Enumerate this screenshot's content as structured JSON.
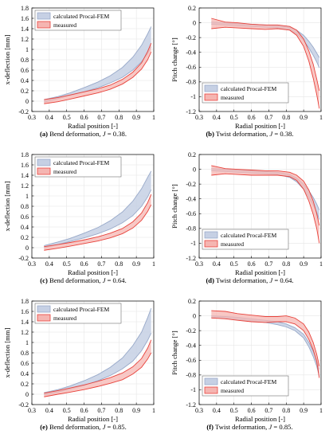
{
  "figure": {
    "panels": [
      {
        "caption": {
          "label": "(a)",
          "text": "Bend deformation,",
          "param": "J",
          "value": "= 0.38."
        }
      },
      {
        "caption": {
          "label": "(b)",
          "text": "Twist deformation,",
          "param": "J",
          "value": "= 0.38."
        }
      },
      {
        "caption": {
          "label": "(c)",
          "text": "Bend deformation,",
          "param": "J",
          "value": "= 0.64."
        }
      },
      {
        "caption": {
          "label": "(d)",
          "text": "Twist deformation,",
          "param": "J",
          "value": "= 0.64."
        }
      },
      {
        "caption": {
          "label": "(e)",
          "text": "Bend deformation,",
          "param": "J",
          "value": "= 0.85."
        }
      },
      {
        "caption": {
          "label": "(f)",
          "text": "Twist deformation,",
          "param": "J",
          "value": "= 0.85."
        }
      }
    ]
  },
  "colors": {
    "calculated_fill": "#c6d0e4",
    "calculated_line": "#98a9c9",
    "measured_fill": "#f5b5b1",
    "measured_line": "#e8423b",
    "grid": "#e6e6e6",
    "axis": "#000000"
  },
  "chart_data": [
    {
      "type": "area",
      "xlabel": "Radial position [-]",
      "ylabel": "x-deflection [mm]",
      "xlim": [
        0.3,
        1.0
      ],
      "ylim": [
        -0.2,
        1.8
      ],
      "grid": true,
      "legend": "top-left",
      "xticks": [
        "0.3",
        "0.4",
        "0.5",
        "0.6",
        "0.7",
        "0.8",
        "0.9",
        "1"
      ],
      "yticks": [
        "-0.2",
        "0",
        "0.2",
        "0.4",
        "0.6",
        "0.8",
        "1",
        "1.2",
        "1.4",
        "1.6",
        "1.8"
      ],
      "x": [
        0.37,
        0.45,
        0.52,
        0.6,
        0.68,
        0.75,
        0.82,
        0.88,
        0.93,
        0.965,
        0.985
      ],
      "series": [
        {
          "name": "calculated Procal-FEM",
          "lower": [
            -0.02,
            0.05,
            0.11,
            0.18,
            0.26,
            0.35,
            0.46,
            0.6,
            0.76,
            0.92,
            1.05
          ],
          "upper": [
            0.03,
            0.09,
            0.16,
            0.26,
            0.37,
            0.49,
            0.65,
            0.85,
            1.08,
            1.3,
            1.44
          ]
        },
        {
          "name": "measured",
          "lower": [
            -0.05,
            -0.01,
            0.04,
            0.1,
            0.16,
            0.23,
            0.33,
            0.46,
            0.62,
            0.8,
            0.95
          ],
          "upper": [
            0.03,
            0.07,
            0.12,
            0.18,
            0.24,
            0.31,
            0.42,
            0.56,
            0.74,
            0.96,
            1.12
          ]
        }
      ]
    },
    {
      "type": "area",
      "xlabel": "Radial position [-]",
      "ylabel": "Pitch change [°]",
      "xlim": [
        0.3,
        1.0
      ],
      "ylim": [
        -1.2,
        0.2
      ],
      "grid": true,
      "legend": "bottom-left",
      "xticks": [
        "0.3",
        "0.4",
        "0.5",
        "0.6",
        "0.7",
        "0.8",
        "0.9",
        "1"
      ],
      "yticks": [
        "-1.2",
        "-1",
        "-0.8",
        "-0.6",
        "-0.4",
        "-0.2",
        "0",
        "0.2"
      ],
      "x": [
        0.37,
        0.45,
        0.52,
        0.6,
        0.68,
        0.75,
        0.82,
        0.86,
        0.9,
        0.93,
        0.955,
        0.975,
        0.99
      ],
      "series": [
        {
          "name": "calculated Procal-FEM",
          "lower": [
            -0.02,
            -0.03,
            -0.04,
            -0.05,
            -0.06,
            -0.07,
            -0.1,
            -0.15,
            -0.24,
            -0.34,
            -0.44,
            -0.53,
            -0.61
          ],
          "upper": [
            0.01,
            0.0,
            -0.01,
            -0.02,
            -0.03,
            -0.04,
            -0.06,
            -0.1,
            -0.17,
            -0.25,
            -0.33,
            -0.41,
            -0.47
          ]
        },
        {
          "name": "measured",
          "lower": [
            -0.08,
            -0.06,
            -0.07,
            -0.08,
            -0.09,
            -0.08,
            -0.1,
            -0.17,
            -0.32,
            -0.52,
            -0.75,
            -0.97,
            -1.16
          ],
          "upper": [
            0.06,
            0.01,
            0.0,
            -0.02,
            -0.03,
            -0.03,
            -0.05,
            -0.1,
            -0.22,
            -0.38,
            -0.56,
            -0.76,
            -0.92
          ]
        }
      ]
    },
    {
      "type": "area",
      "xlabel": "Radial position [-]",
      "ylabel": "x-deflection [mm]",
      "xlim": [
        0.3,
        1.0
      ],
      "ylim": [
        -0.2,
        1.8
      ],
      "grid": true,
      "legend": "top-left",
      "xticks": [
        "0.3",
        "0.4",
        "0.5",
        "0.6",
        "0.7",
        "0.8",
        "0.9",
        "1"
      ],
      "yticks": [
        "-0.2",
        "0",
        "0.2",
        "0.4",
        "0.6",
        "0.8",
        "1",
        "1.2",
        "1.4",
        "1.6",
        "1.8"
      ],
      "x": [
        0.37,
        0.45,
        0.52,
        0.6,
        0.68,
        0.75,
        0.82,
        0.88,
        0.93,
        0.965,
        0.985
      ],
      "series": [
        {
          "name": "calculated Procal-FEM",
          "lower": [
            0.0,
            0.06,
            0.12,
            0.19,
            0.27,
            0.36,
            0.48,
            0.62,
            0.8,
            0.98,
            1.12
          ],
          "upper": [
            0.04,
            0.11,
            0.18,
            0.28,
            0.39,
            0.52,
            0.69,
            0.9,
            1.14,
            1.36,
            1.48
          ]
        },
        {
          "name": "measured",
          "lower": [
            -0.05,
            -0.01,
            0.03,
            0.08,
            0.13,
            0.19,
            0.27,
            0.38,
            0.53,
            0.7,
            0.83
          ],
          "upper": [
            0.02,
            0.06,
            0.1,
            0.15,
            0.21,
            0.28,
            0.37,
            0.5,
            0.67,
            0.87,
            1.03
          ]
        }
      ]
    },
    {
      "type": "area",
      "xlabel": "Radial position [-]",
      "ylabel": "Pitch change [°]",
      "xlim": [
        0.3,
        1.0
      ],
      "ylim": [
        -1.2,
        0.2
      ],
      "grid": true,
      "legend": "bottom-left",
      "xticks": [
        "0.3",
        "0.4",
        "0.5",
        "0.6",
        "0.7",
        "0.8",
        "0.9",
        "1"
      ],
      "yticks": [
        "-1.2",
        "-1",
        "-0.8",
        "-0.6",
        "-0.4",
        "-0.2",
        "0",
        "0.2"
      ],
      "x": [
        0.37,
        0.45,
        0.52,
        0.6,
        0.68,
        0.75,
        0.82,
        0.86,
        0.9,
        0.93,
        0.955,
        0.975,
        0.99
      ],
      "series": [
        {
          "name": "calculated Procal-FEM",
          "lower": [
            -0.02,
            -0.03,
            -0.04,
            -0.05,
            -0.06,
            -0.07,
            -0.11,
            -0.17,
            -0.27,
            -0.38,
            -0.48,
            -0.58,
            -0.68
          ],
          "upper": [
            0.01,
            0.0,
            -0.01,
            -0.02,
            -0.03,
            -0.04,
            -0.07,
            -0.12,
            -0.2,
            -0.29,
            -0.38,
            -0.47,
            -0.55
          ]
        },
        {
          "name": "measured",
          "lower": [
            -0.08,
            -0.06,
            -0.07,
            -0.08,
            -0.08,
            -0.08,
            -0.1,
            -0.15,
            -0.27,
            -0.43,
            -0.61,
            -0.8,
            -1.0
          ],
          "upper": [
            0.05,
            0.01,
            0.0,
            -0.01,
            -0.02,
            -0.02,
            -0.04,
            -0.08,
            -0.16,
            -0.28,
            -0.43,
            -0.6,
            -0.76
          ]
        }
      ]
    },
    {
      "type": "area",
      "xlabel": "Radial position [-]",
      "ylabel": "x-deflection [mm]",
      "xlim": [
        0.3,
        1.0
      ],
      "ylim": [
        -0.2,
        1.8
      ],
      "grid": true,
      "legend": "top-left",
      "xticks": [
        "0.3",
        "0.4",
        "0.5",
        "0.6",
        "0.7",
        "0.8",
        "0.9",
        "1"
      ],
      "yticks": [
        "-0.2",
        "0",
        "0.2",
        "0.4",
        "0.6",
        "0.8",
        "1",
        "1.2",
        "1.4",
        "1.6",
        "1.8"
      ],
      "x": [
        0.37,
        0.45,
        0.52,
        0.6,
        0.68,
        0.75,
        0.82,
        0.88,
        0.93,
        0.965,
        0.985
      ],
      "series": [
        {
          "name": "calculated Procal-FEM",
          "lower": [
            -0.01,
            0.04,
            0.1,
            0.17,
            0.26,
            0.36,
            0.49,
            0.64,
            0.84,
            1.04,
            1.18
          ],
          "upper": [
            0.03,
            0.09,
            0.16,
            0.26,
            0.38,
            0.52,
            0.7,
            0.94,
            1.2,
            1.48,
            1.66
          ]
        },
        {
          "name": "measured",
          "lower": [
            -0.05,
            0.0,
            0.04,
            0.09,
            0.15,
            0.21,
            0.28,
            0.39,
            0.52,
            0.68,
            0.8
          ],
          "upper": [
            0.02,
            0.07,
            0.12,
            0.18,
            0.25,
            0.32,
            0.41,
            0.53,
            0.69,
            0.89,
            1.05
          ]
        }
      ]
    },
    {
      "type": "area",
      "xlabel": "Radial position [-]",
      "ylabel": "Pitch change [°]",
      "xlim": [
        0.3,
        1.0
      ],
      "ylim": [
        -1.2,
        0.2
      ],
      "grid": true,
      "legend": "bottom-left",
      "xticks": [
        "0.3",
        "0.4",
        "0.5",
        "0.6",
        "0.7",
        "0.8",
        "0.9",
        "1"
      ],
      "yticks": [
        "-1.2",
        "-1",
        "-0.8",
        "-0.6",
        "-0.4",
        "-0.2",
        "0",
        "0.2"
      ],
      "x": [
        0.37,
        0.45,
        0.52,
        0.6,
        0.68,
        0.75,
        0.8,
        0.85,
        0.9,
        0.93,
        0.955,
        0.975,
        0.99
      ],
      "series": [
        {
          "name": "calculated Procal-FEM",
          "lower": [
            -0.02,
            -0.03,
            -0.05,
            -0.07,
            -0.09,
            -0.12,
            -0.15,
            -0.2,
            -0.3,
            -0.42,
            -0.55,
            -0.68,
            -0.82
          ],
          "upper": [
            0.0,
            -0.01,
            -0.02,
            -0.04,
            -0.06,
            -0.08,
            -0.11,
            -0.16,
            -0.25,
            -0.36,
            -0.48,
            -0.6,
            -0.72
          ]
        },
        {
          "name": "measured",
          "lower": [
            -0.03,
            -0.04,
            -0.06,
            -0.08,
            -0.09,
            -0.08,
            -0.08,
            -0.11,
            -0.2,
            -0.32,
            -0.46,
            -0.62,
            -0.84
          ],
          "upper": [
            0.07,
            0.06,
            0.03,
            0.01,
            -0.01,
            -0.01,
            0.0,
            -0.03,
            -0.11,
            -0.22,
            -0.36,
            -0.52,
            -0.68
          ]
        }
      ]
    }
  ]
}
